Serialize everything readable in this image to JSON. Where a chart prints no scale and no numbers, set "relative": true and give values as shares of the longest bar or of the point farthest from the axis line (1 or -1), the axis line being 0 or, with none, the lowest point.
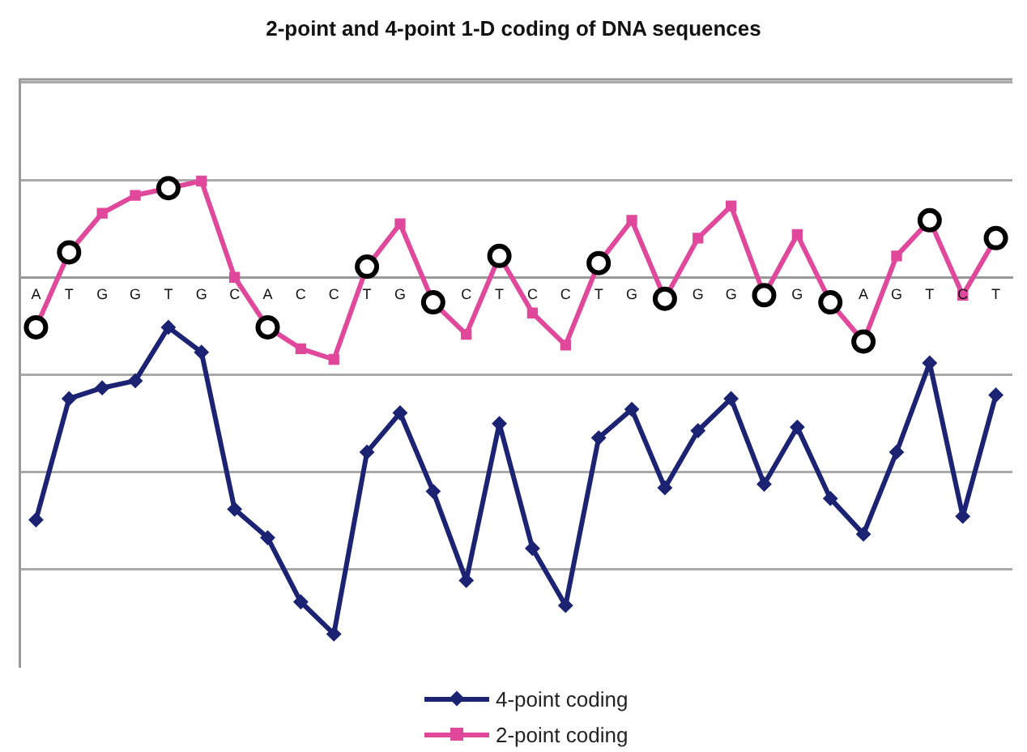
{
  "chart_data": {
    "type": "line",
    "title": "2-point and 4-point 1-D coding of DNA sequences",
    "categories": [
      "A",
      "T",
      "G",
      "G",
      "T",
      "G",
      "C",
      "A",
      "C",
      "C",
      "T",
      "G",
      null,
      "C",
      "T",
      "C",
      "C",
      "T",
      "G",
      null,
      "G",
      "G",
      null,
      "G",
      null,
      "A",
      "G",
      "T",
      "C",
      "T"
    ],
    "relative": true,
    "grid": true,
    "legend": "bottom",
    "series": [
      {
        "name": "4-point coding",
        "color": "#1b2372",
        "marker": "diamond",
        "values": [
          -0.68,
          -0.34,
          -0.31,
          -0.29,
          -0.14,
          -0.21,
          -0.65,
          -0.73,
          -0.91,
          -1,
          -0.49,
          -0.38,
          -0.6,
          -0.85,
          -0.41,
          -0.76,
          -0.92,
          -0.45,
          -0.37,
          -0.59,
          -0.43,
          -0.34,
          -0.58,
          -0.42,
          -0.62,
          -0.72,
          -0.49,
          -0.24,
          -0.67,
          -0.33
        ]
      },
      {
        "name": "2-point coding",
        "color": "#e0489c",
        "marker": "square",
        "values": [
          -0.14,
          0.07,
          0.18,
          0.23,
          0.25,
          0.27,
          0,
          -0.14,
          -0.2,
          -0.23,
          0.03,
          0.15,
          -0.07,
          -0.16,
          0.06,
          -0.1,
          -0.19,
          0.04,
          0.16,
          -0.06,
          0.11,
          0.2,
          -0.05,
          0.12,
          -0.07,
          -0.18,
          0.06,
          0.16,
          -0.05,
          0.11
        ]
      },
      {
        "type": "scatter",
        "color": "#000000",
        "marker": "circle",
        "values": [
          -0.14,
          0.07,
          null,
          null,
          0.25,
          null,
          null,
          -0.14,
          null,
          null,
          0.03,
          null,
          -0.07,
          null,
          0.06,
          null,
          null,
          0.04,
          null,
          -0.06,
          null,
          null,
          -0.05,
          null,
          -0.07,
          -0.18,
          null,
          0.16,
          null,
          0.11
        ]
      }
    ]
  }
}
